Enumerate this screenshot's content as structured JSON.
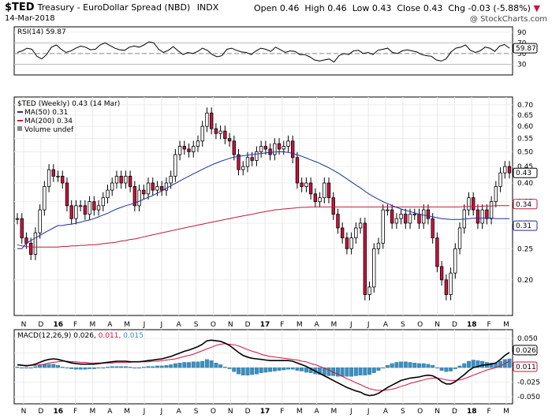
{
  "header": {
    "symbol": "$TED",
    "name": "Treasury - EuroDollar Spread (NBD)",
    "index": "INDX",
    "date": "14-Mar-2018",
    "open_label": "Open",
    "open": "0.46",
    "high_label": "High",
    "high": "0.46",
    "low_label": "Low",
    "low": "0.43",
    "close_label": "Close",
    "close": "0.43",
    "chg_label": "Chg",
    "chg": "-0.03 (-5.88%)",
    "watermark": "@ StockCharts.com"
  },
  "colors": {
    "up": "#ffffff",
    "down": "#d11141",
    "ma50": "#1f2f9e",
    "ma200": "#c21a3a",
    "macd": "#000000",
    "signal": "#d11141",
    "hist": "#3a8fc0"
  },
  "chart_data": [
    {
      "type": "line",
      "title": "RSI(14) 59.87",
      "y_ticks": [
        90,
        70,
        50,
        30
      ],
      "ylim": [
        10,
        100
      ],
      "last_value_label": "59.87",
      "values": [
        52,
        55,
        60,
        58,
        45,
        40,
        48,
        62,
        66,
        58,
        52,
        55,
        60,
        64,
        62,
        57,
        58,
        66,
        70,
        65,
        60,
        57,
        56,
        62,
        64,
        62,
        66,
        72,
        70,
        58,
        52,
        56,
        63,
        55,
        48,
        52,
        50,
        54,
        60,
        56,
        48,
        44,
        46,
        58,
        60,
        56,
        53,
        52,
        48,
        55,
        60,
        58,
        54,
        62,
        57,
        52,
        55,
        54,
        48,
        48,
        44,
        38,
        36,
        38,
        40,
        34,
        46,
        50,
        48,
        55,
        56,
        50,
        52,
        48,
        56,
        58,
        60,
        52,
        50,
        55,
        57,
        55,
        53,
        48,
        46,
        45,
        38,
        36,
        40,
        53,
        60,
        62,
        66,
        56,
        52,
        55,
        62,
        60,
        54,
        64,
        67,
        60
      ]
    },
    {
      "type": "candlestick",
      "title": "$TED (Weekly) 0.43 (14 Mar)",
      "legend": [
        "MA(50) 0.31",
        "MA(200) 0.34",
        "Volume undef"
      ],
      "y_ticks": [
        0.7,
        0.65,
        0.6,
        0.55,
        0.5,
        0.45,
        0.4,
        0.35,
        0.3,
        0.25,
        0.2
      ],
      "y_tick_labels": [
        "0.70",
        "0.65",
        "0.60",
        "0.55",
        "0.50",
        "0.45",
        "0.40",
        "0.35",
        "0.30",
        "0.25",
        "0.20"
      ],
      "ylim": [
        0.155,
        0.74
      ],
      "log_scale": true,
      "last_labels": [
        "0.43",
        "0.34",
        "0.31"
      ],
      "x_labels": [
        "N",
        "D",
        "16",
        "F",
        "M",
        "A",
        "M",
        "J",
        "J",
        "A",
        "S",
        "O",
        "N",
        "D",
        "17",
        "F",
        "M",
        "A",
        "M",
        "J",
        "J",
        "A",
        "S",
        "O",
        "N",
        "D",
        "18",
        "F",
        "M"
      ],
      "close": [
        0.31,
        0.27,
        0.26,
        0.24,
        0.28,
        0.33,
        0.39,
        0.44,
        0.42,
        0.42,
        0.4,
        0.34,
        0.31,
        0.34,
        0.34,
        0.32,
        0.35,
        0.33,
        0.34,
        0.36,
        0.38,
        0.4,
        0.42,
        0.4,
        0.42,
        0.39,
        0.34,
        0.38,
        0.37,
        0.4,
        0.38,
        0.39,
        0.38,
        0.4,
        0.42,
        0.49,
        0.52,
        0.51,
        0.5,
        0.52,
        0.54,
        0.6,
        0.66,
        0.59,
        0.57,
        0.58,
        0.55,
        0.54,
        0.49,
        0.44,
        0.45,
        0.48,
        0.47,
        0.5,
        0.52,
        0.51,
        0.49,
        0.53,
        0.51,
        0.52,
        0.54,
        0.48,
        0.4,
        0.39,
        0.4,
        0.37,
        0.35,
        0.36,
        0.4,
        0.36,
        0.32,
        0.29,
        0.27,
        0.25,
        0.27,
        0.29,
        0.3,
        0.18,
        0.19,
        0.25,
        0.26,
        0.33,
        0.33,
        0.3,
        0.31,
        0.32,
        0.3,
        0.32,
        0.32,
        0.3,
        0.33,
        0.31,
        0.27,
        0.22,
        0.2,
        0.18,
        0.21,
        0.25,
        0.29,
        0.33,
        0.36,
        0.33,
        0.3,
        0.33,
        0.31,
        0.35,
        0.39,
        0.43,
        0.45,
        0.43
      ],
      "ma50": [
        0.25,
        0.25,
        0.26,
        0.265,
        0.27,
        0.275,
        0.28,
        0.285,
        0.29,
        0.295,
        0.295,
        0.297,
        0.298,
        0.3,
        0.302,
        0.305,
        0.307,
        0.31,
        0.314,
        0.318,
        0.322,
        0.327,
        0.332,
        0.336,
        0.34,
        0.343,
        0.347,
        0.351,
        0.356,
        0.361,
        0.366,
        0.372,
        0.378,
        0.385,
        0.392,
        0.399,
        0.406,
        0.413,
        0.42,
        0.427,
        0.434,
        0.441,
        0.448,
        0.455,
        0.461,
        0.467,
        0.472,
        0.477,
        0.481,
        0.484,
        0.486,
        0.488,
        0.49,
        0.492,
        0.494,
        0.496,
        0.498,
        0.499,
        0.5,
        0.5,
        0.498,
        0.494,
        0.489,
        0.484,
        0.478,
        0.472,
        0.466,
        0.46,
        0.453,
        0.446,
        0.438,
        0.43,
        0.421,
        0.412,
        0.403,
        0.394,
        0.386,
        0.377,
        0.369,
        0.362,
        0.356,
        0.35,
        0.345,
        0.34,
        0.336,
        0.332,
        0.329,
        0.326,
        0.323,
        0.32,
        0.318,
        0.316,
        0.314,
        0.312,
        0.31,
        0.309,
        0.308,
        0.308,
        0.308,
        0.309,
        0.31,
        0.311,
        0.311,
        0.311,
        0.311,
        0.311,
        0.31,
        0.31,
        0.31,
        0.31
      ],
      "ma200": [
        0.257,
        0.255,
        0.254,
        0.253,
        0.253,
        0.253,
        0.253,
        0.253,
        0.253,
        0.253,
        0.254,
        0.254,
        0.255,
        0.255,
        0.256,
        0.256,
        0.257,
        0.257,
        0.258,
        0.259,
        0.26,
        0.261,
        0.262,
        0.264,
        0.265,
        0.267,
        0.268,
        0.27,
        0.272,
        0.274,
        0.276,
        0.278,
        0.28,
        0.282,
        0.284,
        0.286,
        0.288,
        0.29,
        0.292,
        0.294,
        0.296,
        0.298,
        0.3,
        0.302,
        0.304,
        0.306,
        0.308,
        0.31,
        0.312,
        0.314,
        0.316,
        0.318,
        0.32,
        0.322,
        0.324,
        0.326,
        0.328,
        0.33,
        0.331,
        0.332,
        0.333,
        0.334,
        0.335,
        0.336,
        0.336,
        0.337,
        0.337,
        0.337,
        0.337,
        0.337,
        0.337,
        0.337,
        0.337,
        0.337,
        0.337,
        0.337,
        0.337,
        0.337,
        0.337,
        0.337,
        0.337,
        0.337,
        0.337,
        0.337,
        0.337,
        0.337,
        0.337,
        0.337,
        0.337,
        0.337,
        0.337,
        0.337,
        0.337,
        0.337,
        0.337,
        0.337,
        0.337,
        0.337,
        0.337,
        0.338,
        0.338,
        0.338,
        0.338,
        0.339,
        0.339,
        0.339,
        0.34,
        0.34,
        0.34,
        0.34
      ]
    },
    {
      "type": "line",
      "title": "MACD(12,26,9)",
      "title_values": [
        "0.026,",
        "0.011,",
        "0.015"
      ],
      "y_ticks": [
        0.05,
        0.025,
        0.0,
        -0.025,
        -0.05
      ],
      "y_tick_labels": [
        "0.050",
        "0.025",
        "0.000",
        "-0.025",
        "-0.050"
      ],
      "ylim": [
        -0.062,
        0.065
      ],
      "last_labels": [
        "0.026",
        "0.011"
      ],
      "x_labels": [
        "N",
        "D",
        "16",
        "F",
        "M",
        "A",
        "M",
        "J",
        "J",
        "A",
        "S",
        "O",
        "N",
        "D",
        "17",
        "F",
        "M",
        "A",
        "M",
        "J",
        "J",
        "A",
        "S",
        "O",
        "N",
        "D",
        "18",
        "F",
        "M"
      ],
      "macd": [
        0.005,
        0.004,
        0.003,
        0.004,
        0.006,
        0.009,
        0.012,
        0.014,
        0.015,
        0.014,
        0.012,
        0.01,
        0.008,
        0.007,
        0.006,
        0.006,
        0.006,
        0.006,
        0.007,
        0.008,
        0.009,
        0.01,
        0.011,
        0.011,
        0.011,
        0.01,
        0.01,
        0.01,
        0.011,
        0.012,
        0.013,
        0.014,
        0.015,
        0.017,
        0.019,
        0.022,
        0.025,
        0.028,
        0.03,
        0.033,
        0.036,
        0.04,
        0.046,
        0.047,
        0.046,
        0.045,
        0.042,
        0.038,
        0.032,
        0.026,
        0.021,
        0.018,
        0.016,
        0.015,
        0.014,
        0.013,
        0.012,
        0.012,
        0.012,
        0.012,
        0.012,
        0.011,
        0.008,
        0.005,
        0.002,
        -0.002,
        -0.006,
        -0.01,
        -0.014,
        -0.018,
        -0.022,
        -0.026,
        -0.03,
        -0.034,
        -0.037,
        -0.04,
        -0.042,
        -0.046,
        -0.048,
        -0.047,
        -0.044,
        -0.039,
        -0.034,
        -0.03,
        -0.026,
        -0.022,
        -0.02,
        -0.018,
        -0.017,
        -0.016,
        -0.014,
        -0.013,
        -0.014,
        -0.018,
        -0.024,
        -0.028,
        -0.028,
        -0.024,
        -0.018,
        -0.012,
        -0.005,
        0.0,
        0.002,
        0.004,
        0.005,
        0.006,
        0.008,
        0.014,
        0.021,
        0.026
      ],
      "signal": [
        0.004,
        0.004,
        0.004,
        0.004,
        0.004,
        0.005,
        0.006,
        0.008,
        0.009,
        0.01,
        0.011,
        0.011,
        0.01,
        0.01,
        0.009,
        0.009,
        0.008,
        0.008,
        0.008,
        0.008,
        0.008,
        0.008,
        0.009,
        0.009,
        0.009,
        0.009,
        0.01,
        0.01,
        0.01,
        0.01,
        0.011,
        0.011,
        0.012,
        0.013,
        0.014,
        0.015,
        0.017,
        0.019,
        0.021,
        0.023,
        0.026,
        0.029,
        0.032,
        0.035,
        0.038,
        0.04,
        0.041,
        0.04,
        0.039,
        0.037,
        0.034,
        0.031,
        0.028,
        0.026,
        0.023,
        0.021,
        0.019,
        0.018,
        0.017,
        0.016,
        0.015,
        0.014,
        0.013,
        0.011,
        0.01,
        0.007,
        0.005,
        0.002,
        -0.001,
        -0.004,
        -0.008,
        -0.011,
        -0.015,
        -0.019,
        -0.022,
        -0.026,
        -0.029,
        -0.033,
        -0.036,
        -0.038,
        -0.039,
        -0.039,
        -0.038,
        -0.037,
        -0.035,
        -0.032,
        -0.03,
        -0.027,
        -0.025,
        -0.023,
        -0.021,
        -0.019,
        -0.018,
        -0.018,
        -0.019,
        -0.021,
        -0.022,
        -0.022,
        -0.021,
        -0.019,
        -0.016,
        -0.013,
        -0.01,
        -0.007,
        -0.004,
        -0.002,
        0.0,
        0.003,
        0.007,
        0.011
      ]
    }
  ]
}
